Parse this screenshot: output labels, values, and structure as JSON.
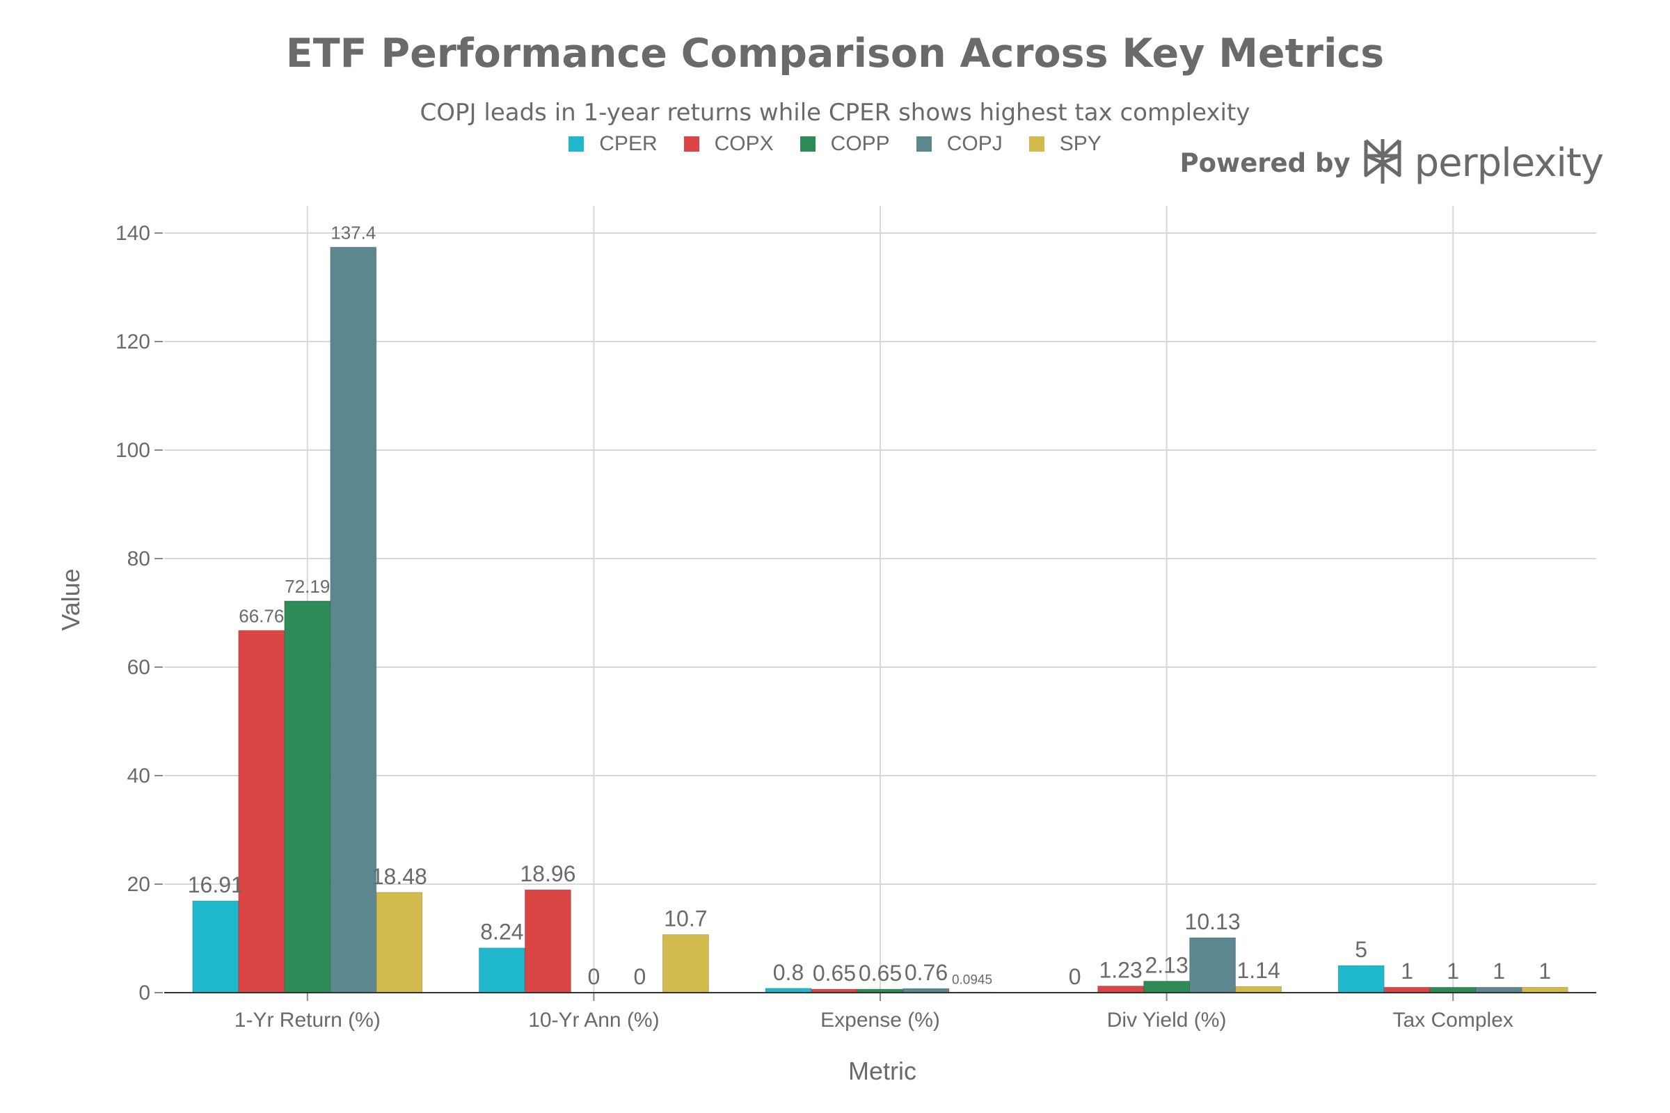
{
  "chart_data": {
    "type": "bar",
    "title": "ETF Performance Comparison Across Key Metrics",
    "subtitle": "COPJ leads in 1-year returns while CPER shows highest tax complexity",
    "xlabel": "Metric",
    "ylabel": "Value",
    "ylim": [
      0,
      145
    ],
    "yticks": [
      0,
      20,
      40,
      60,
      80,
      100,
      120,
      140
    ],
    "grid": true,
    "legend_position": "top-center",
    "categories": [
      "1-Yr Return (%)",
      "10-Yr Ann (%)",
      "Expense (%)",
      "Div Yield (%)",
      "Tax Complex"
    ],
    "series": [
      {
        "name": "CPER",
        "color": "#1FB8CD",
        "values": [
          16.91,
          8.24,
          0.8,
          0,
          5
        ],
        "labels": [
          "16.91",
          "8.24",
          "0.8",
          "0",
          "5"
        ]
      },
      {
        "name": "COPX",
        "color": "#DB4545",
        "values": [
          66.76,
          18.96,
          0.65,
          1.23,
          1
        ],
        "labels": [
          "66.76",
          "18.96",
          "0.65",
          "1.23",
          "1"
        ]
      },
      {
        "name": "COPP",
        "color": "#2E8B57",
        "values": [
          72.19,
          0,
          0.65,
          2.13,
          1
        ],
        "labels": [
          "72.19",
          "0",
          "0.65",
          "2.13",
          "1"
        ]
      },
      {
        "name": "COPJ",
        "color": "#5D878F",
        "values": [
          137.4,
          0,
          0.76,
          10.13,
          1
        ],
        "labels": [
          "137.4",
          "0",
          "0.76",
          "10.13",
          "1"
        ]
      },
      {
        "name": "SPY",
        "color": "#D2BA4C",
        "values": [
          18.48,
          10.7,
          0.0945,
          1.14,
          1
        ],
        "labels": [
          "18.48",
          "10.7",
          "0.0945",
          "1.14",
          "1"
        ]
      }
    ]
  },
  "branding": {
    "powered_by": "Powered by",
    "name": "perplexity",
    "icon": "perplexity-logo-icon"
  }
}
